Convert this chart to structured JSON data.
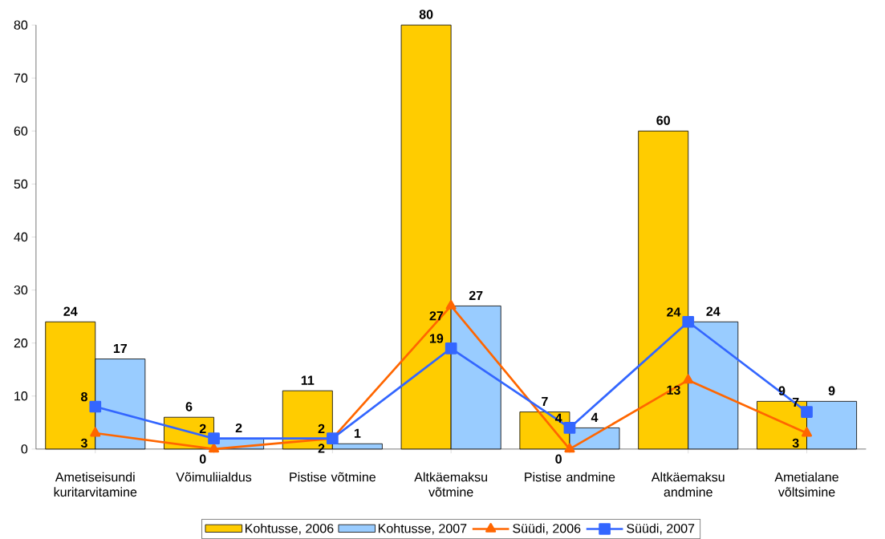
{
  "chart_data": {
    "type": "bar",
    "categories": [
      "Ametiseisundi kuritarvitamine",
      "Võimuliialdus",
      "Pistise võtmine",
      "Altkäemaksu võtmine",
      "Pistise andmine",
      "Altkäemaksu andmine",
      "Ametialane võltsimine"
    ],
    "series": [
      {
        "name": "Kohtusse, 2006",
        "color": "#ffcc00",
        "values": [
          24,
          6,
          11,
          80,
          7,
          60,
          9
        ]
      },
      {
        "name": "Kohtusse, 2007",
        "color": "#99ccff",
        "values": [
          17,
          2,
          1,
          27,
          4,
          24,
          9
        ]
      },
      {
        "name": "Süüdi, 2006",
        "type": "line",
        "color": "#ff6600",
        "marker": "triangle",
        "values": [
          3,
          0,
          2,
          27,
          0,
          13,
          3
        ]
      },
      {
        "name": "Süüdi, 2007",
        "type": "line",
        "color": "#3366ff",
        "marker": "square",
        "values": [
          8,
          2,
          2,
          19,
          4,
          24,
          7
        ]
      }
    ],
    "ylim": [
      0,
      80
    ],
    "yticks": [
      0,
      10,
      20,
      30,
      40,
      50,
      60,
      70,
      80
    ],
    "data_labels": true,
    "grid": false,
    "legend": "bottom"
  }
}
